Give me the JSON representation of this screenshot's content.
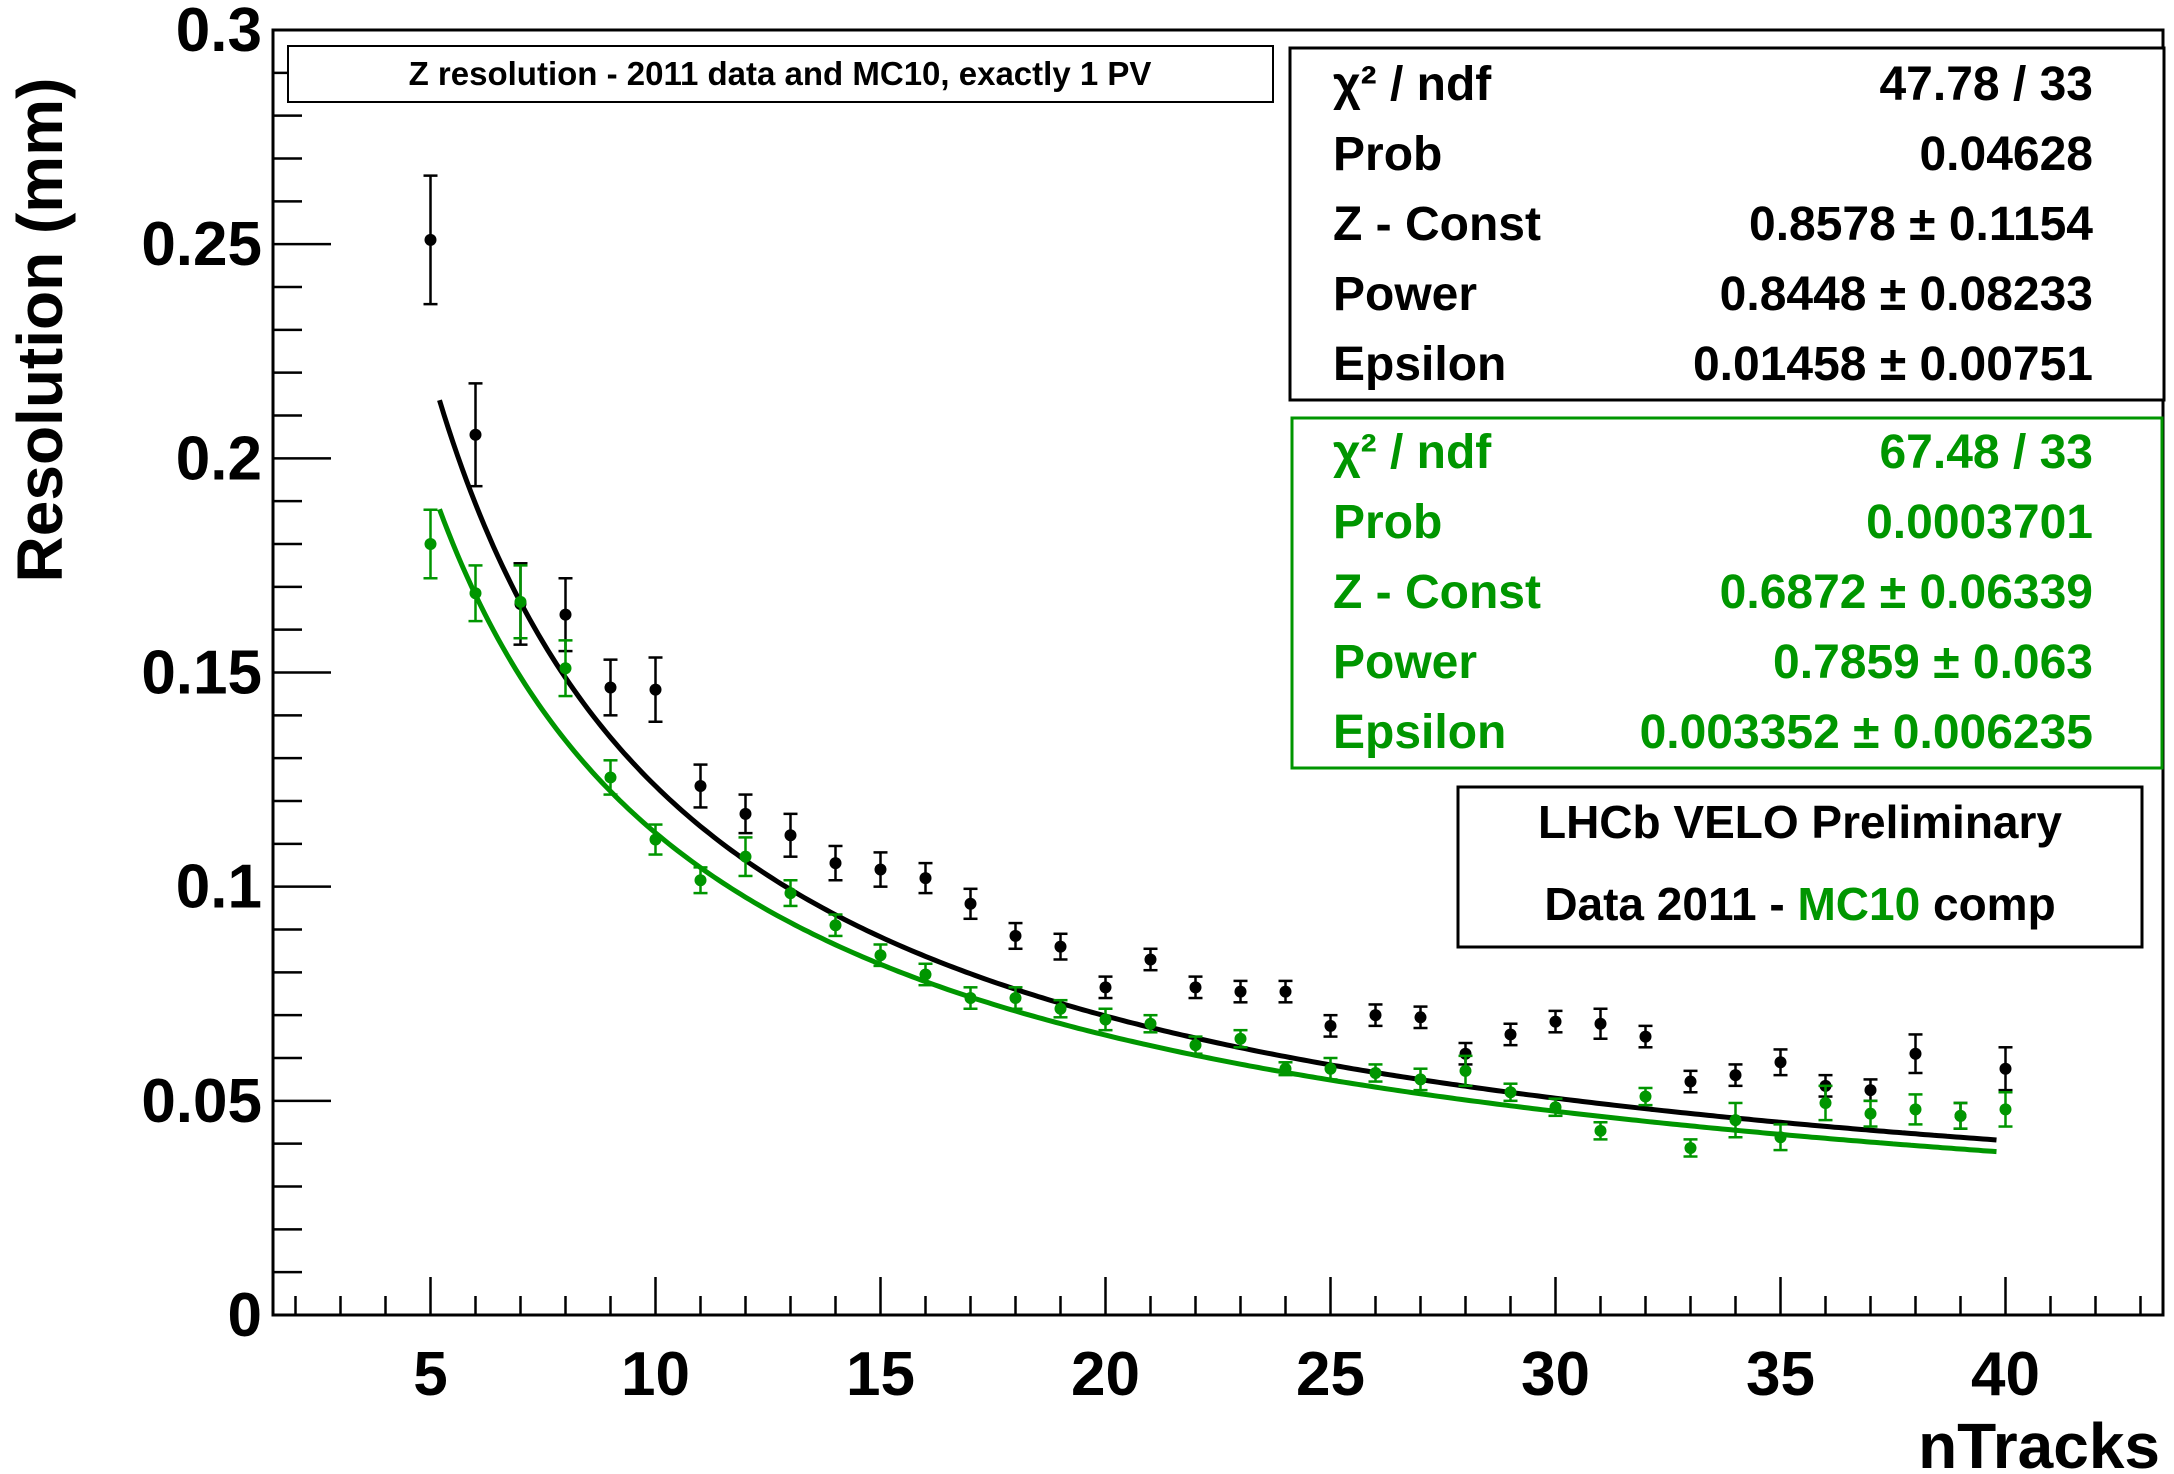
{
  "chart_data": {
    "type": "scatter",
    "title": "Z resolution - 2011 data and MC10, exactly 1 PV",
    "xlabel": "nTracks",
    "ylabel": "Resolution (mm)",
    "xlim": [
      1.5,
      43.5
    ],
    "ylim": [
      0,
      0.3
    ],
    "x_major_ticks": [
      5,
      10,
      15,
      20,
      25,
      30,
      35,
      40
    ],
    "x_tick_labels": [
      "5",
      "10",
      "15",
      "20",
      "25",
      "30",
      "35",
      "40"
    ],
    "y_major_ticks": [
      0,
      0.05,
      0.1,
      0.15,
      0.2,
      0.25,
      0.3
    ],
    "y_tick_labels": [
      "0",
      "0.05",
      "0.1",
      "0.15",
      "0.2",
      "0.25",
      "0.3"
    ],
    "grid": false,
    "series": [
      {
        "key": "data",
        "color": "#000000",
        "x": [
          5,
          6,
          7,
          8,
          9,
          10,
          11,
          12,
          13,
          14,
          15,
          16,
          17,
          18,
          19,
          20,
          21,
          22,
          23,
          24,
          25,
          26,
          27,
          28,
          29,
          30,
          31,
          32,
          33,
          34,
          35,
          36,
          37,
          38,
          39,
          40
        ],
        "y": [
          0.251,
          0.2055,
          0.166,
          0.1635,
          0.1465,
          0.146,
          0.1235,
          0.117,
          0.112,
          0.1055,
          0.104,
          0.102,
          0.096,
          0.0885,
          0.086,
          0.0765,
          0.083,
          0.0765,
          0.0755,
          0.0755,
          0.0675,
          0.07,
          0.0695,
          0.061,
          0.0655,
          0.0685,
          0.068,
          0.065,
          0.0545,
          0.056,
          0.059,
          0.0535,
          0.0525,
          0.061,
          0.0465,
          0.0575
        ],
        "yerr": [
          0.015,
          0.012,
          0.0095,
          0.0085,
          0.0065,
          0.0075,
          0.005,
          0.0045,
          0.005,
          0.004,
          0.004,
          0.0035,
          0.0035,
          0.003,
          0.003,
          0.0025,
          0.0025,
          0.0025,
          0.0025,
          0.0025,
          0.0025,
          0.0025,
          0.0025,
          0.0025,
          0.0025,
          0.0025,
          0.0035,
          0.0025,
          0.0025,
          0.0025,
          0.003,
          0.0025,
          0.0025,
          0.0045,
          0.003,
          0.005
        ],
        "fit": {
          "z_const": 0.8578,
          "power": 0.8448,
          "epsilon": 0.01458,
          "x_range": [
            5,
            39.8
          ]
        }
      },
      {
        "key": "mc10",
        "color": "#009600",
        "x": [
          5,
          6,
          7,
          8,
          9,
          10,
          11,
          12,
          13,
          14,
          15,
          16,
          17,
          18,
          19,
          20,
          21,
          22,
          23,
          24,
          25,
          26,
          27,
          28,
          29,
          30,
          31,
          32,
          33,
          34,
          35,
          36,
          37,
          38,
          39,
          40
        ],
        "y": [
          0.18,
          0.1685,
          0.1665,
          0.151,
          0.1255,
          0.111,
          0.1015,
          0.107,
          0.0985,
          0.091,
          0.084,
          0.0795,
          0.074,
          0.074,
          0.0715,
          0.069,
          0.068,
          0.063,
          0.0645,
          0.0575,
          0.0575,
          0.0565,
          0.055,
          0.057,
          0.052,
          0.0485,
          0.043,
          0.051,
          0.039,
          0.0455,
          0.0415,
          0.0495,
          0.047,
          0.048,
          0.0465,
          0.048
        ],
        "yerr": [
          0.008,
          0.0065,
          0.0085,
          0.0065,
          0.004,
          0.0035,
          0.003,
          0.0045,
          0.003,
          0.0025,
          0.0025,
          0.0025,
          0.0025,
          0.0025,
          0.002,
          0.0025,
          0.002,
          0.002,
          0.002,
          0.0015,
          0.0025,
          0.002,
          0.0025,
          0.0035,
          0.002,
          0.002,
          0.002,
          0.002,
          0.002,
          0.004,
          0.003,
          0.004,
          0.003,
          0.0035,
          0.003,
          0.004
        ],
        "fit": {
          "z_const": 0.6872,
          "power": 0.7859,
          "epsilon": 0.003352,
          "x_range": [
            5,
            39.8
          ]
        }
      }
    ]
  },
  "stats_data": {
    "color": "#000000",
    "rows": [
      {
        "name": "χ² / ndf",
        "value": "47.78 / 33"
      },
      {
        "name": "Prob",
        "value": "0.04628"
      },
      {
        "name": "Z - Const",
        "value": "0.8578 ± 0.1154"
      },
      {
        "name": "Power",
        "value": "0.8448 ± 0.08233"
      },
      {
        "name": "Epsilon",
        "value": "0.01458 ± 0.00751"
      }
    ]
  },
  "stats_mc": {
    "color": "#009600",
    "rows": [
      {
        "name": "χ² / ndf",
        "value": "67.48 / 33"
      },
      {
        "name": "Prob",
        "value": "0.0003701"
      },
      {
        "name": "Z - Const",
        "value": "0.6872 ± 0.06339"
      },
      {
        "name": "Power",
        "value": "0.7859 ± 0.063"
      },
      {
        "name": "Epsilon",
        "value": "0.003352 ± 0.006235"
      }
    ]
  },
  "label_box": {
    "line1": "LHCb VELO Preliminary",
    "line2_prefix": "Data 2011 - ",
    "line2_highlight": "MC10",
    "line2_suffix": " comp",
    "highlight_color": "#009600"
  }
}
